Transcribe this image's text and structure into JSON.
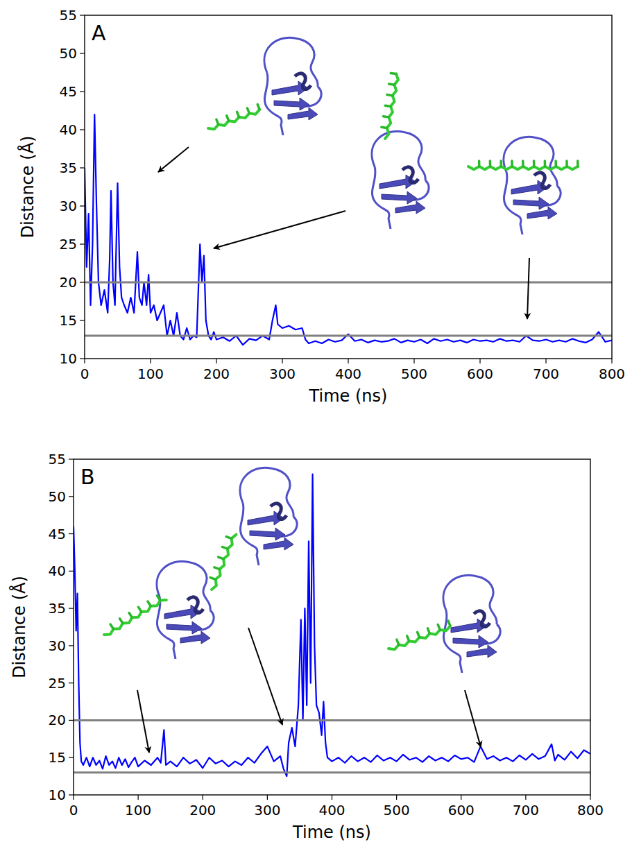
{
  "chart_data": [
    {
      "type": "line",
      "panel": "A",
      "xlabel": "Time (ns)",
      "ylabel": "Distance (Å)",
      "color": "#0000ff",
      "xlim": [
        0,
        800
      ],
      "ylim": [
        10,
        55
      ],
      "xticks": [
        0,
        100,
        200,
        300,
        400,
        500,
        600,
        700,
        800
      ],
      "yticks": [
        10,
        15,
        20,
        25,
        30,
        35,
        40,
        45,
        50,
        55
      ],
      "reference_lines": [
        13,
        20
      ],
      "x": [
        0,
        3,
        6,
        9,
        12,
        15,
        18,
        21,
        25,
        30,
        35,
        38,
        40,
        43,
        46,
        50,
        53,
        56,
        60,
        65,
        70,
        75,
        80,
        83,
        87,
        90,
        94,
        97,
        100,
        105,
        110,
        115,
        120,
        125,
        130,
        135,
        140,
        145,
        150,
        155,
        160,
        165,
        170,
        175,
        178,
        181,
        184,
        188,
        192,
        196,
        200,
        210,
        220,
        230,
        240,
        250,
        260,
        270,
        280,
        285,
        290,
        293,
        300,
        310,
        320,
        330,
        335,
        340,
        350,
        360,
        370,
        380,
        390,
        400,
        410,
        420,
        430,
        440,
        450,
        460,
        470,
        480,
        490,
        500,
        510,
        520,
        530,
        540,
        550,
        560,
        570,
        580,
        590,
        600,
        610,
        620,
        630,
        640,
        650,
        660,
        670,
        680,
        690,
        700,
        710,
        720,
        730,
        740,
        750,
        760,
        770,
        780,
        790,
        800
      ],
      "values": [
        35,
        22,
        29,
        17,
        25,
        42,
        30,
        20,
        17,
        19,
        16,
        23,
        32,
        20,
        17,
        33,
        22,
        18,
        17,
        16,
        18,
        16,
        24,
        18,
        17,
        20,
        17,
        21,
        16,
        17,
        15,
        16,
        17,
        13,
        15,
        13,
        16,
        13,
        12.5,
        14,
        12.5,
        13,
        12.8,
        25,
        20,
        23.5,
        15,
        13,
        12.5,
        13.5,
        12.5,
        12.8,
        12.3,
        13,
        11.8,
        12.6,
        12.4,
        13,
        12.5,
        15,
        17,
        14.5,
        14,
        14.3,
        13.8,
        14,
        12.5,
        12,
        12.3,
        12,
        12.5,
        12.2,
        12.4,
        13.2,
        12.3,
        12.5,
        12.1,
        12.4,
        12.2,
        12.3,
        12.6,
        12.1,
        12.4,
        12.2,
        12.5,
        12,
        12.6,
        12.3,
        12.5,
        12.2,
        12.4,
        12.1,
        12.5,
        12.3,
        12.4,
        12.2,
        12.6,
        12.3,
        12.4,
        12.2,
        13,
        12.4,
        12.3,
        12.5,
        12.2,
        12.4,
        12.2,
        12.6,
        12.3,
        12.1,
        12.5,
        13.5,
        12.2,
        12.4
      ]
    },
    {
      "type": "line",
      "panel": "B",
      "xlabel": "Time (ns)",
      "ylabel": "Distance (Å)",
      "color": "#0000ff",
      "xlim": [
        0,
        800
      ],
      "ylim": [
        10,
        55
      ],
      "xticks": [
        0,
        100,
        200,
        300,
        400,
        500,
        600,
        700,
        800
      ],
      "yticks": [
        10,
        15,
        20,
        25,
        30,
        35,
        40,
        45,
        50,
        55
      ],
      "reference_lines": [
        13,
        20
      ],
      "x": [
        0,
        2,
        4,
        6,
        8,
        10,
        12,
        15,
        20,
        25,
        30,
        35,
        40,
        45,
        50,
        55,
        60,
        65,
        70,
        75,
        80,
        85,
        90,
        95,
        100,
        110,
        120,
        130,
        135,
        140,
        143,
        150,
        160,
        170,
        180,
        190,
        200,
        210,
        220,
        230,
        240,
        250,
        260,
        270,
        280,
        290,
        300,
        310,
        320,
        325,
        330,
        333,
        338,
        343,
        348,
        352,
        355,
        358,
        361,
        364,
        367,
        370,
        373,
        376,
        380,
        384,
        387,
        390,
        393,
        400,
        410,
        420,
        430,
        440,
        450,
        460,
        470,
        480,
        490,
        500,
        510,
        520,
        530,
        540,
        550,
        560,
        570,
        580,
        590,
        600,
        610,
        620,
        630,
        640,
        650,
        660,
        670,
        680,
        690,
        700,
        710,
        720,
        730,
        740,
        745,
        750,
        760,
        770,
        780,
        790,
        800
      ],
      "values": [
        46,
        40,
        32,
        37,
        25,
        17,
        14.5,
        14,
        15,
        13.8,
        15,
        14,
        14.6,
        13.5,
        15.2,
        14,
        14.5,
        13.6,
        15,
        14,
        14.8,
        13.7,
        14.4,
        15,
        13.8,
        14.6,
        14,
        15,
        14.3,
        18.7,
        14,
        14.5,
        13.8,
        15,
        14.2,
        14.7,
        13.6,
        15,
        14.2,
        14.6,
        13.8,
        14.5,
        14,
        15,
        14.3,
        15.5,
        16.5,
        14.5,
        15.2,
        13.5,
        12.5,
        17,
        19,
        16.5,
        22,
        33.5,
        20,
        35,
        22,
        44,
        25,
        53,
        30,
        22,
        21,
        18,
        22.5,
        17,
        15,
        14.5,
        15,
        14.3,
        15.2,
        14.5,
        15,
        14.4,
        15.3,
        14.6,
        15,
        14.5,
        15.4,
        14.7,
        15,
        14.4,
        15.2,
        14.6,
        15,
        14.5,
        15.3,
        14.8,
        15,
        14.4,
        16.5,
        14.8,
        15.2,
        14.6,
        15,
        14.5,
        15.3,
        14.7,
        15.5,
        14.8,
        15.2,
        16.8,
        14.6,
        15.4,
        14.7,
        15.8,
        14.9,
        16,
        15.5
      ]
    }
  ]
}
